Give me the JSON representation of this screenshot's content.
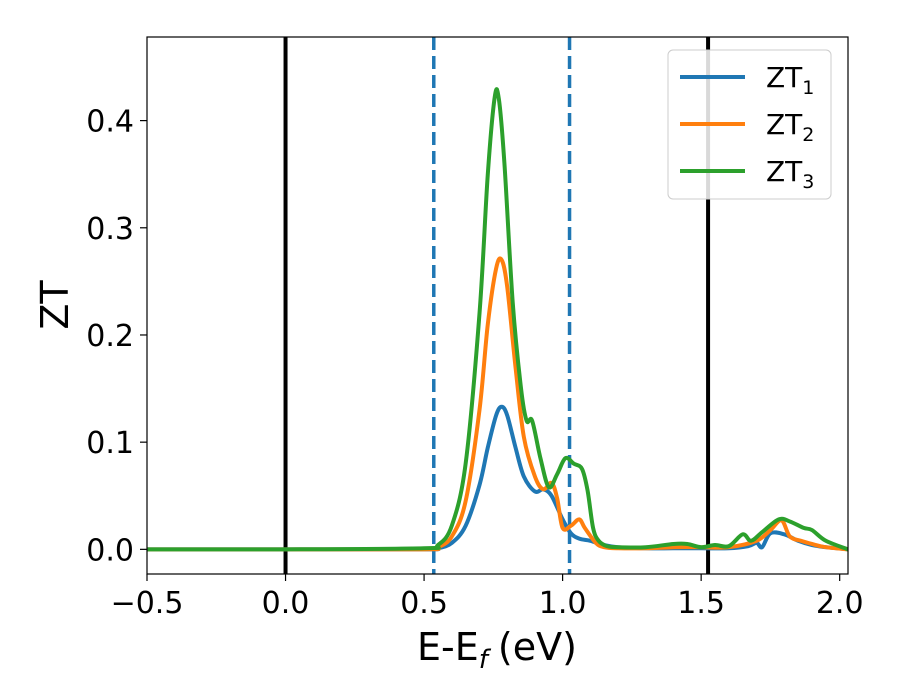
{
  "chart_data": {
    "type": "line",
    "xlabel": "E-E",
    "xlabel_sub": "f",
    "xlabel_unit": "(eV)",
    "ylabel": "ZT",
    "xlim": [
      -0.5,
      2.03
    ],
    "ylim": [
      -0.023,
      0.478
    ],
    "xticks": [
      -0.5,
      0.0,
      0.5,
      1.0,
      1.5,
      2.0
    ],
    "xtick_labels": [
      "−0.5",
      "0.0",
      "0.5",
      "1.0",
      "1.5",
      "2.0"
    ],
    "yticks": [
      0.0,
      0.1,
      0.2,
      0.3,
      0.4
    ],
    "ytick_labels": [
      "0.0",
      "0.1",
      "0.2",
      "0.3",
      "0.4"
    ],
    "grid": false,
    "legend_position": "top-right",
    "vertical_lines": [
      {
        "x": 0.0,
        "style": "solid",
        "color": "#000000"
      },
      {
        "x": 1.525,
        "style": "solid",
        "color": "#000000"
      },
      {
        "x": 0.535,
        "style": "dashed",
        "color": "#1f77b4"
      },
      {
        "x": 1.025,
        "style": "dashed",
        "color": "#1f77b4"
      }
    ],
    "series": [
      {
        "name": "ZT",
        "name_sub": "1",
        "color": "#1f77b4",
        "x": [
          -0.5,
          0.0,
          0.5,
          0.55,
          0.6,
          0.65,
          0.7,
          0.73,
          0.76,
          0.78,
          0.8,
          0.83,
          0.86,
          0.9,
          0.93,
          0.96,
          1.0,
          1.03,
          1.06,
          1.1,
          1.15,
          1.2,
          1.3,
          1.4,
          1.5,
          1.6,
          1.67,
          1.7,
          1.72,
          1.75,
          1.8,
          1.85,
          1.9,
          1.95,
          2.03
        ],
        "y": [
          0.0,
          0.0,
          0.0,
          0.001,
          0.006,
          0.022,
          0.06,
          0.095,
          0.125,
          0.133,
          0.125,
          0.095,
          0.068,
          0.054,
          0.056,
          0.05,
          0.028,
          0.015,
          0.01,
          0.008,
          0.004,
          0.002,
          0.001,
          0.001,
          0.001,
          0.001,
          0.003,
          0.006,
          0.002,
          0.015,
          0.014,
          0.008,
          0.004,
          0.002,
          0.0
        ]
      },
      {
        "name": "ZT",
        "name_sub": "2",
        "color": "#ff7f0e",
        "x": [
          -0.5,
          0.0,
          0.5,
          0.55,
          0.6,
          0.65,
          0.7,
          0.73,
          0.76,
          0.78,
          0.8,
          0.83,
          0.86,
          0.9,
          0.93,
          0.96,
          0.98,
          1.0,
          1.03,
          1.06,
          1.08,
          1.12,
          1.15,
          1.2,
          1.3,
          1.4,
          1.5,
          1.6,
          1.7,
          1.75,
          1.79,
          1.82,
          1.86,
          1.9,
          1.95,
          2.03
        ],
        "y": [
          0.0,
          0.0,
          0.0,
          0.002,
          0.012,
          0.045,
          0.13,
          0.21,
          0.262,
          0.27,
          0.245,
          0.17,
          0.105,
          0.068,
          0.056,
          0.062,
          0.048,
          0.02,
          0.022,
          0.028,
          0.02,
          0.006,
          0.002,
          0.001,
          0.001,
          0.002,
          0.002,
          0.002,
          0.008,
          0.018,
          0.027,
          0.012,
          0.008,
          0.005,
          0.002,
          0.0
        ]
      },
      {
        "name": "ZT",
        "name_sub": "3",
        "color": "#2ca02c",
        "x": [
          -0.5,
          0.0,
          0.5,
          0.55,
          0.6,
          0.65,
          0.7,
          0.73,
          0.755,
          0.77,
          0.79,
          0.82,
          0.85,
          0.87,
          0.89,
          0.92,
          0.95,
          0.98,
          1.01,
          1.04,
          1.07,
          1.09,
          1.11,
          1.13,
          1.16,
          1.2,
          1.3,
          1.4,
          1.45,
          1.5,
          1.55,
          1.6,
          1.65,
          1.68,
          1.72,
          1.78,
          1.82,
          1.87,
          1.9,
          1.95,
          2.03
        ],
        "y": [
          0.0,
          0.0,
          0.001,
          0.004,
          0.022,
          0.08,
          0.22,
          0.35,
          0.422,
          0.42,
          0.36,
          0.23,
          0.15,
          0.12,
          0.12,
          0.085,
          0.058,
          0.07,
          0.085,
          0.08,
          0.075,
          0.055,
          0.02,
          0.008,
          0.003,
          0.002,
          0.002,
          0.005,
          0.005,
          0.002,
          0.004,
          0.003,
          0.014,
          0.008,
          0.016,
          0.028,
          0.026,
          0.02,
          0.018,
          0.008,
          0.0
        ]
      }
    ]
  }
}
